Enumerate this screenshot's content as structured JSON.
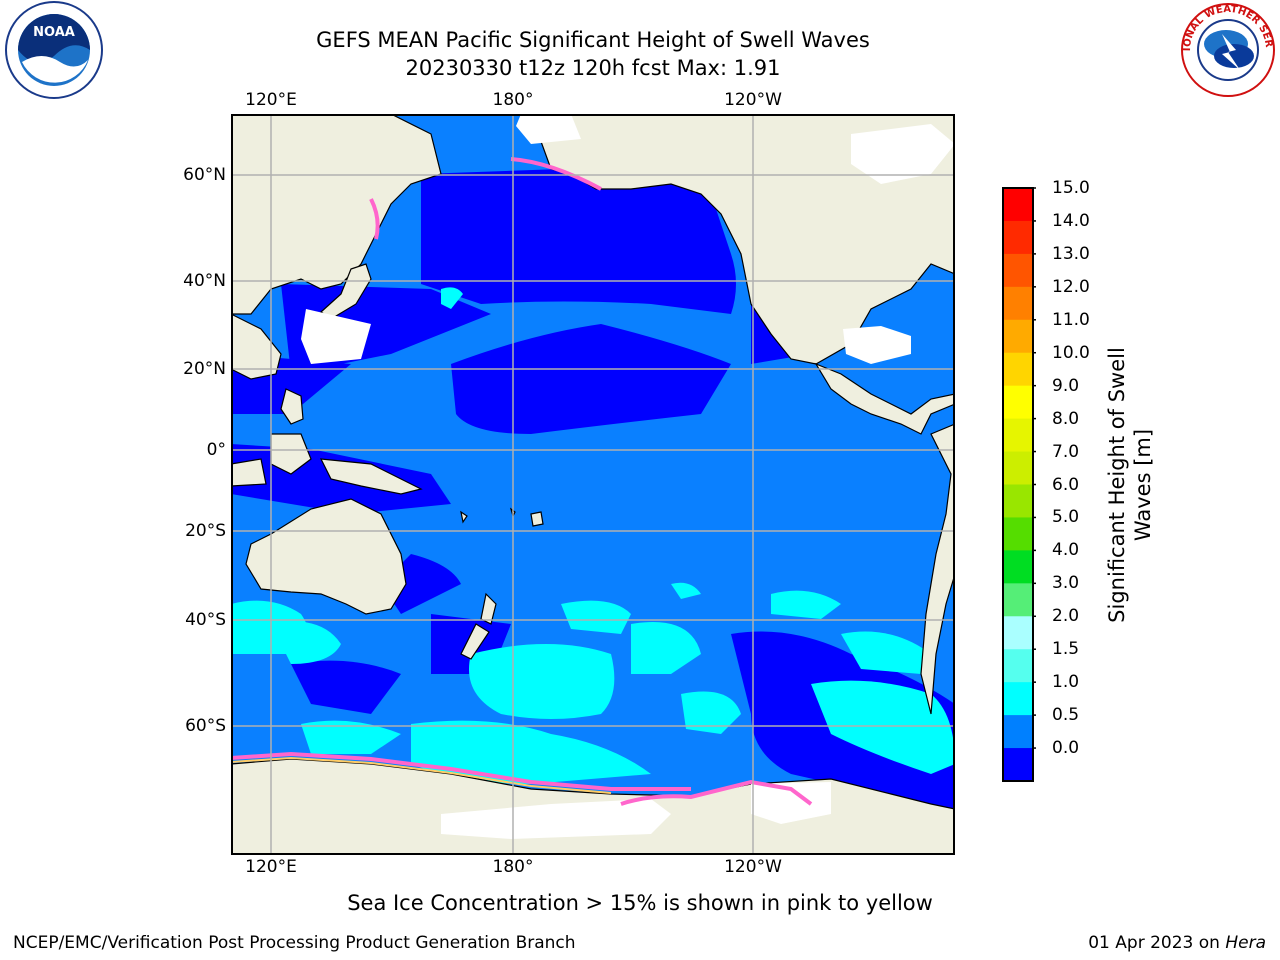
{
  "title_line1": "GEFS MEAN Pacific Significant Height of Swell Waves",
  "title_line2": "20230330 t12z 120h fcst   Max: 1.91",
  "lon_labels": [
    "120°E",
    "180°",
    "120°W"
  ],
  "lat_labels": [
    "60°N",
    "40°N",
    "20°N",
    "0°",
    "20°S",
    "40°S",
    "60°S"
  ],
  "colorbar": {
    "label_line1": "Significant Height of Swell",
    "label_line2": "Waves [m]",
    "ticks": [
      "15.0",
      "14.0",
      "13.0",
      "12.0",
      "11.0",
      "10.0",
      "9.0",
      "8.0",
      "7.0",
      "6.0",
      "5.0",
      "4.0",
      "3.0",
      "2.0",
      "1.5",
      "1.0",
      "0.5",
      "0.0"
    ],
    "colors": [
      "#ff0000",
      "#ff2a00",
      "#ff5500",
      "#ff8000",
      "#ffaa00",
      "#ffd500",
      "#ffff00",
      "#e6f500",
      "#ccee00",
      "#99e600",
      "#55dd00",
      "#00dd22",
      "#55ee77",
      "#aaffff",
      "#55ffee",
      "#00ffff",
      "#0080ff",
      "#0000ff"
    ]
  },
  "map_colors": {
    "land": "#efefdf",
    "ocean_low": "#0000ff",
    "ocean_mid": "#0a80ff",
    "ocean_high": "#00ffff",
    "ice": "#ffffff",
    "ice_edge": "#ff66cc",
    "grid": "#b0b0b0"
  },
  "logos": {
    "noaa_text": "NOAA",
    "nws_text": "NATIONAL WEATHER SERVICE"
  },
  "note": "Sea Ice Concentration > 15% is shown in pink to yellow",
  "footer_left": "NCEP/EMC/Verification Post Processing Product Generation Branch",
  "footer_date": "01 Apr 2023 on ",
  "footer_machine": "Hera"
}
